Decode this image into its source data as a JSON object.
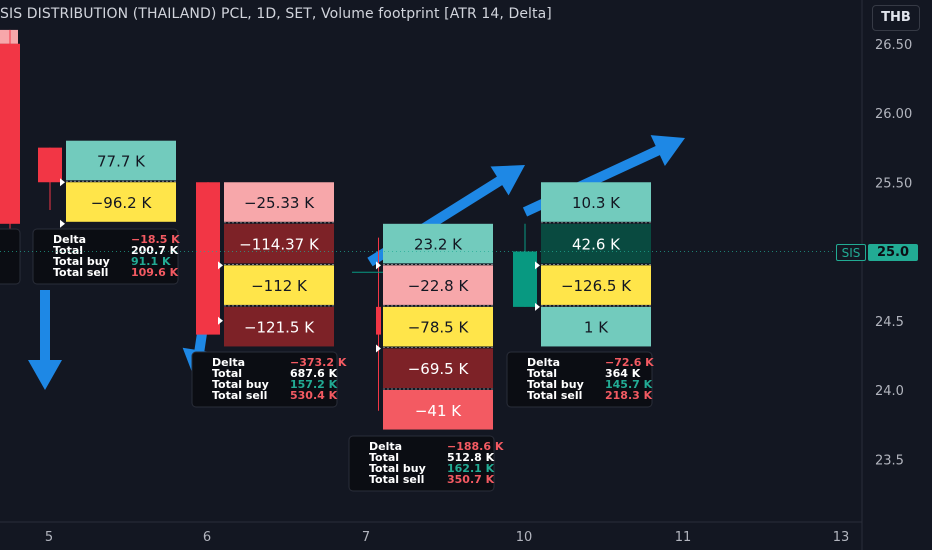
{
  "header": {
    "title": "SIS DISTRIBUTION (THAILAND) PCL, 1D, SET, Volume footprint [ATR 14, Delta]",
    "currency_label": "THB",
    "symbol_tag": "SIS",
    "last_price": "25.0"
  },
  "colors": {
    "background": "#131722",
    "teal": "#72cbbd",
    "yellow": "#ffe54a",
    "pink": "#f7a7aa",
    "dark_red": "#7d2227",
    "red": "#f35a62",
    "dark_teal": "#094a40",
    "candle_up": "#089981",
    "candle_down": "#f23645",
    "arrow": "#1e88e5"
  },
  "chart_data": {
    "type": "footprint",
    "title": "SIS DISTRIBUTION (THAILAND) PCL, 1D, SET, Volume footprint [ATR 14, Delta]",
    "y_axis": {
      "ticks": [
        "26.50",
        "26.00",
        "25.50",
        "25.0",
        "24.5",
        "24.0",
        "23.5"
      ],
      "range": [
        23.2,
        26.6
      ]
    },
    "x_axis": {
      "ticks": [
        "5",
        "6",
        "7",
        "10",
        "11",
        "13"
      ]
    },
    "bars": [
      {
        "date": "4",
        "levels": [],
        "summary": {
          "delta": "",
          "total": "",
          "total_buy": "",
          "total_sell": ""
        }
      },
      {
        "date": "5",
        "levels": [
          {
            "price_top": 25.8,
            "price_bottom": 25.5,
            "label": "77.7 K",
            "color": "teal"
          },
          {
            "price_top": 25.5,
            "price_bottom": 25.2,
            "label": "−96.2 K",
            "color": "yellow"
          }
        ],
        "summary": {
          "delta": "−18.5 K",
          "total": "200.7 K",
          "total_buy": "91.1 K",
          "total_sell": "109.6 K"
        }
      },
      {
        "date": "6",
        "levels": [
          {
            "price_top": 25.5,
            "price_bottom": 25.2,
            "label": "−25.33 K",
            "color": "pink"
          },
          {
            "price_top": 25.2,
            "price_bottom": 24.9,
            "label": "−114.37 K",
            "color": "dark_red"
          },
          {
            "price_top": 24.9,
            "price_bottom": 24.6,
            "label": "−112 K",
            "color": "yellow"
          },
          {
            "price_top": 24.6,
            "price_bottom": 24.3,
            "label": "−121.5 K",
            "color": "dark_red"
          }
        ],
        "summary": {
          "delta": "−373.2 K",
          "total": "687.6 K",
          "total_buy": "157.2 K",
          "total_sell": "530.4 K"
        }
      },
      {
        "date": "7",
        "levels": [
          {
            "price_top": 25.2,
            "price_bottom": 24.9,
            "label": "23.2 K",
            "color": "teal"
          },
          {
            "price_top": 24.9,
            "price_bottom": 24.6,
            "label": "−22.8 K",
            "color": "pink"
          },
          {
            "price_top": 24.6,
            "price_bottom": 24.3,
            "label": "−78.5 K",
            "color": "yellow"
          },
          {
            "price_top": 24.3,
            "price_bottom": 24.0,
            "label": "−69.5 K",
            "color": "dark_red"
          },
          {
            "price_top": 24.0,
            "price_bottom": 23.7,
            "label": "−41 K",
            "color": "red"
          }
        ],
        "summary": {
          "delta": "−188.6 K",
          "total": "512.8 K",
          "total_buy": "162.1 K",
          "total_sell": "350.7 K"
        }
      },
      {
        "date": "10",
        "levels": [
          {
            "price_top": 25.5,
            "price_bottom": 25.2,
            "label": "10.3 K",
            "color": "teal"
          },
          {
            "price_top": 25.2,
            "price_bottom": 24.9,
            "label": "42.6 K",
            "color": "dark_teal"
          },
          {
            "price_top": 24.9,
            "price_bottom": 24.6,
            "label": "−126.5 K",
            "color": "yellow"
          },
          {
            "price_top": 24.6,
            "price_bottom": 24.3,
            "label": "1 K",
            "color": "teal"
          }
        ],
        "summary": {
          "delta": "−72.6 K",
          "total": "364 K",
          "total_buy": "145.7 K",
          "total_sell": "218.3 K"
        }
      }
    ],
    "summary_labels": {
      "delta": "Delta",
      "total": "Total",
      "total_buy": "Total buy",
      "total_sell": "Total sell"
    },
    "candles": [
      {
        "date": "4",
        "open": 26.5,
        "close": 25.2,
        "high": 26.6,
        "low": 25.0,
        "direction": "down"
      },
      {
        "date": "5",
        "open": 25.75,
        "close": 25.5,
        "high": 25.75,
        "low": 25.3,
        "direction": "down"
      },
      {
        "date": "6",
        "open": 25.5,
        "close": 24.4,
        "high": 25.5,
        "low": 24.4,
        "direction": "down"
      },
      {
        "date": "7",
        "open": 24.6,
        "close": 24.4,
        "high": 25.1,
        "low": 23.85,
        "direction": "down"
      },
      {
        "date": "10",
        "open": 24.6,
        "close": 25.0,
        "high": 25.2,
        "low": 24.6,
        "direction": "up"
      }
    ],
    "arrows": [
      {
        "direction": "down",
        "date": "4"
      },
      {
        "direction": "down",
        "date": "6"
      },
      {
        "direction": "up",
        "date": "7"
      },
      {
        "direction": "up",
        "date": "10"
      }
    ]
  }
}
